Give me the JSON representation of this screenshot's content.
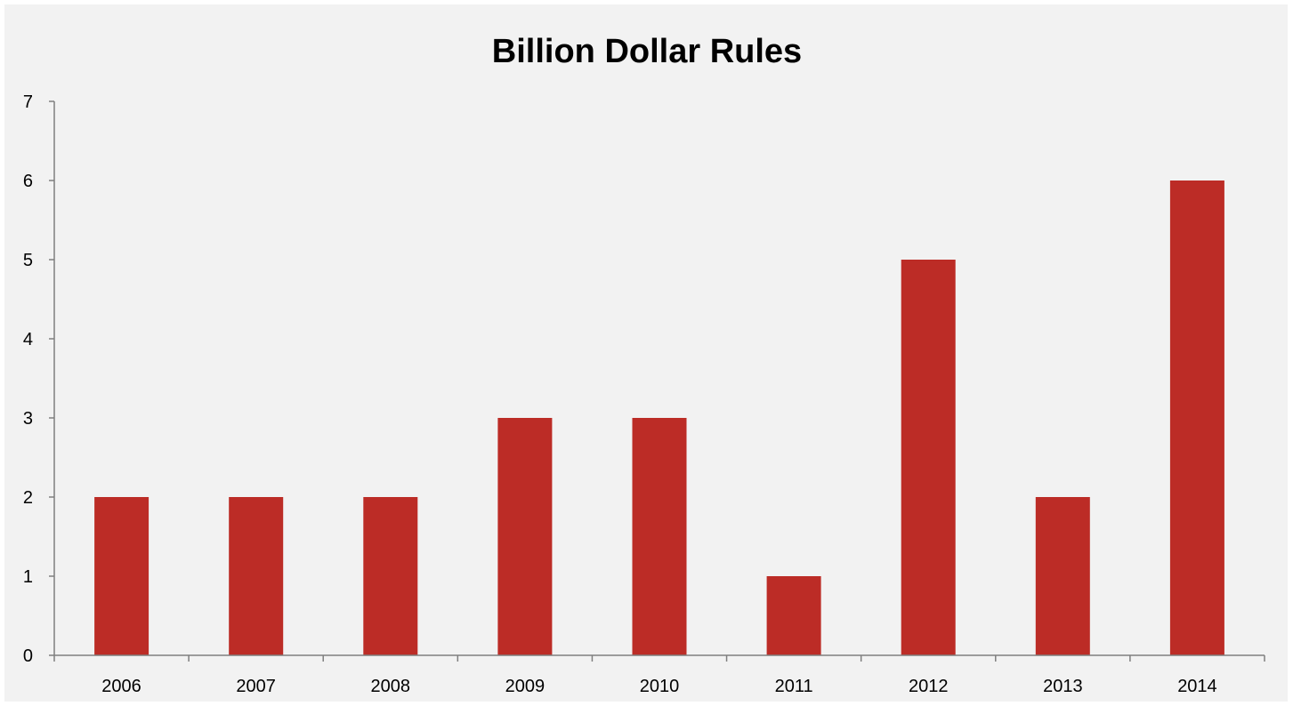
{
  "chart_data": {
    "type": "bar",
    "title": "Billion Dollar Rules",
    "xlabel": "",
    "ylabel": "",
    "categories": [
      "2006",
      "2007",
      "2008",
      "2009",
      "2010",
      "2011",
      "2012",
      "2013",
      "2014"
    ],
    "values": [
      2,
      2,
      2,
      3,
      3,
      1,
      5,
      2,
      6
    ],
    "ylim": [
      0,
      7
    ],
    "yticks": [
      "0",
      "1",
      "2",
      "3",
      "4",
      "5",
      "6",
      "7"
    ],
    "grid": false,
    "legend": "none",
    "colors": {
      "bar": "#bc2c26",
      "background": "#f2f2f2",
      "axis": "#7f7f7f"
    }
  }
}
